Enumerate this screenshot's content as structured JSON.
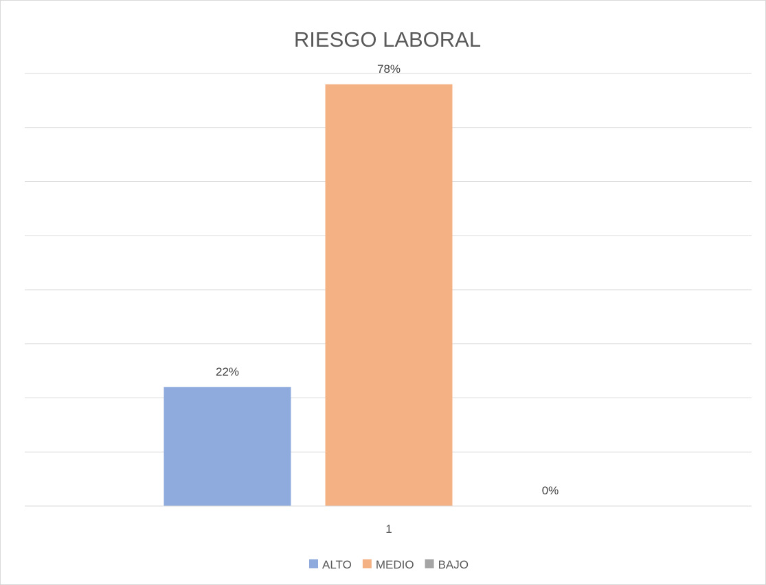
{
  "chart_data": {
    "type": "bar",
    "title": "RIESGO LABORAL",
    "categories": [
      "1"
    ],
    "series": [
      {
        "name": "ALTO",
        "values": [
          22
        ],
        "label": "22%",
        "color": "#8faadc"
      },
      {
        "name": "MEDIO",
        "values": [
          78
        ],
        "label": "78%",
        "color": "#f4b183"
      },
      {
        "name": "BAJO",
        "values": [
          0
        ],
        "label": "0%",
        "color": "#a5a5a5"
      }
    ],
    "ylim": [
      0,
      80
    ],
    "grid": true,
    "legend_position": "bottom"
  }
}
